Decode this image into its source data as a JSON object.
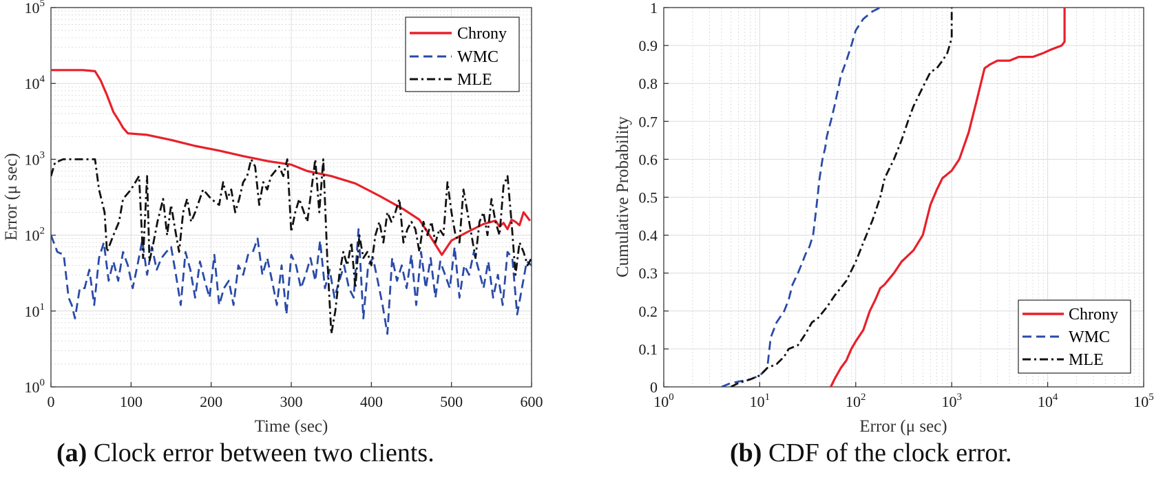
{
  "captions": {
    "a_label": "(a)",
    "a_text": "Clock error between two clients.",
    "b_label": "(b)",
    "b_text": "CDF of the clock error."
  },
  "colors": {
    "chrony": "#e8202a",
    "wmc": "#2a4aa8",
    "mle": "#111111"
  },
  "chart_data": [
    {
      "id": "a",
      "type": "line",
      "title": "",
      "xlabel": "Time (sec)",
      "ylabel": "Error (μ sec)",
      "xscale": "linear",
      "yscale": "log",
      "xlim": [
        0,
        600
      ],
      "ylim": [
        1,
        100000
      ],
      "xticks": [
        0,
        100,
        200,
        300,
        400,
        500,
        600
      ],
      "xtick_labels": [
        "0",
        "100",
        "200",
        "300",
        "400",
        "500",
        "600"
      ],
      "yticks": [
        1,
        10,
        100,
        1000,
        10000,
        100000
      ],
      "ytick_labels": [
        {
          "base": "10",
          "exp": "0"
        },
        {
          "base": "10",
          "exp": "1"
        },
        {
          "base": "10",
          "exp": "2"
        },
        {
          "base": "10",
          "exp": "3"
        },
        {
          "base": "10",
          "exp": "4"
        },
        {
          "base": "10",
          "exp": "5"
        }
      ],
      "grid": true,
      "legend_position": "top-right",
      "series": [
        {
          "name": "Chrony",
          "style": "solid",
          "x": [
            0,
            20,
            40,
            55,
            62,
            70,
            78,
            85,
            90,
            96,
            120,
            150,
            180,
            210,
            240,
            270,
            300,
            320,
            350,
            380,
            410,
            440,
            460,
            470,
            480,
            488,
            500,
            520,
            540,
            555,
            560,
            565,
            570,
            575,
            580,
            585,
            590,
            598
          ],
          "y": [
            15000,
            15000,
            15000,
            14500,
            11000,
            7000,
            4200,
            3200,
            2600,
            2200,
            2100,
            1800,
            1500,
            1300,
            1100,
            950,
            850,
            700,
            600,
            480,
            330,
            220,
            160,
            110,
            75,
            55,
            85,
            110,
            140,
            155,
            130,
            145,
            120,
            160,
            150,
            135,
            200,
            155
          ]
        },
        {
          "name": "WMC",
          "style": "dashed",
          "x": [
            0,
            8,
            16,
            22,
            26,
            30,
            36,
            42,
            48,
            54,
            60,
            66,
            72,
            78,
            84,
            90,
            96,
            102,
            108,
            114,
            120,
            126,
            132,
            138,
            144,
            150,
            156,
            162,
            168,
            174,
            180,
            186,
            192,
            198,
            204,
            210,
            216,
            222,
            228,
            234,
            240,
            246,
            252,
            258,
            264,
            270,
            276,
            282,
            288,
            294,
            300,
            306,
            312,
            318,
            324,
            330,
            336,
            342,
            348,
            354,
            360,
            366,
            372,
            378,
            384,
            390,
            396,
            402,
            408,
            414,
            420,
            426,
            432,
            438,
            444,
            450,
            456,
            462,
            468,
            474,
            480,
            486,
            492,
            498,
            504,
            510,
            516,
            522,
            528,
            534,
            540,
            546,
            552,
            558,
            564,
            570,
            576,
            582,
            588,
            594,
            600
          ],
          "y": [
            100,
            60,
            55,
            15,
            12,
            8,
            20,
            20,
            35,
            12,
            50,
            80,
            25,
            45,
            25,
            60,
            40,
            20,
            40,
            85,
            30,
            70,
            35,
            50,
            60,
            70,
            30,
            12,
            60,
            35,
            15,
            45,
            25,
            15,
            55,
            12,
            20,
            25,
            12,
            40,
            30,
            55,
            60,
            90,
            30,
            50,
            25,
            12,
            40,
            9,
            55,
            40,
            20,
            30,
            50,
            25,
            85,
            20,
            35,
            15,
            25,
            40,
            20,
            15,
            120,
            8,
            40,
            50,
            25,
            12,
            5,
            50,
            25,
            40,
            20,
            55,
            12,
            60,
            20,
            50,
            15,
            45,
            30,
            20,
            70,
            15,
            40,
            30,
            60,
            35,
            20,
            45,
            15,
            30,
            12,
            60,
            50,
            9,
            20,
            45,
            40
          ]
        },
        {
          "name": "MLE",
          "style": "dashdot",
          "x": [
            0,
            5,
            15,
            25,
            40,
            55,
            60,
            67,
            70,
            78,
            85,
            90,
            100,
            110,
            115,
            120,
            123,
            128,
            133,
            140,
            145,
            150,
            155,
            160,
            165,
            170,
            175,
            180,
            190,
            200,
            210,
            215,
            220,
            225,
            230,
            235,
            240,
            245,
            250,
            255,
            260,
            265,
            270,
            275,
            280,
            285,
            290,
            295,
            300,
            305,
            310,
            320,
            330,
            335,
            340,
            345,
            350,
            355,
            360,
            365,
            370,
            375,
            380,
            385,
            390,
            395,
            400,
            405,
            410,
            415,
            420,
            425,
            430,
            435,
            440,
            445,
            450,
            455,
            460,
            465,
            470,
            475,
            480,
            485,
            490,
            495,
            500,
            505,
            510,
            515,
            520,
            525,
            530,
            535,
            540,
            545,
            550,
            555,
            560,
            565,
            570,
            575,
            580,
            585,
            590,
            595,
            600
          ],
          "y": [
            600,
            900,
            1000,
            1000,
            1000,
            1000,
            400,
            200,
            60,
            100,
            150,
            300,
            400,
            600,
            50,
            600,
            45,
            80,
            150,
            300,
            100,
            250,
            120,
            60,
            200,
            300,
            150,
            200,
            400,
            300,
            250,
            500,
            300,
            400,
            200,
            300,
            500,
            600,
            1000,
            800,
            250,
            500,
            400,
            600,
            700,
            800,
            600,
            1000,
            110,
            200,
            300,
            150,
            1000,
            200,
            1000,
            50,
            5,
            10,
            30,
            60,
            40,
            80,
            20,
            100,
            50,
            60,
            40,
            100,
            150,
            80,
            200,
            150,
            200,
            300,
            80,
            120,
            150,
            120,
            60,
            150,
            100,
            150,
            80,
            120,
            100,
            500,
            200,
            100,
            80,
            400,
            200,
            100,
            50,
            150,
            200,
            100,
            300,
            150,
            100,
            450,
            600,
            150,
            30,
            80,
            60,
            40,
            50
          ]
        }
      ]
    },
    {
      "id": "b",
      "type": "line",
      "title": "",
      "xlabel": "Error (μ sec)",
      "ylabel": "Cumulative Probability",
      "xscale": "log",
      "yscale": "linear",
      "xlim": [
        1,
        100000
      ],
      "ylim": [
        0,
        1
      ],
      "xticks": [
        1,
        10,
        100,
        1000,
        10000,
        100000
      ],
      "xtick_labels": [
        {
          "base": "10",
          "exp": "0"
        },
        {
          "base": "10",
          "exp": "1"
        },
        {
          "base": "10",
          "exp": "2"
        },
        {
          "base": "10",
          "exp": "3"
        },
        {
          "base": "10",
          "exp": "4"
        },
        {
          "base": "10",
          "exp": "5"
        }
      ],
      "yticks": [
        0,
        0.1,
        0.2,
        0.3,
        0.4,
        0.5,
        0.6,
        0.7,
        0.8,
        0.9,
        1
      ],
      "ytick_labels": [
        "0",
        "0.1",
        "0.2",
        "0.3",
        "0.4",
        "0.5",
        "0.6",
        "0.7",
        "0.8",
        "0.9",
        "1"
      ],
      "grid": true,
      "legend_position": "bottom-right",
      "series": [
        {
          "name": "Chrony",
          "style": "solid",
          "x": [
            55,
            60,
            70,
            80,
            90,
            100,
            120,
            140,
            160,
            180,
            200,
            250,
            300,
            400,
            500,
            600,
            700,
            800,
            1000,
            1200,
            1500,
            1800,
            2200,
            2500,
            3000,
            4000,
            5000,
            7000,
            9000,
            11000,
            14000,
            15000,
            15000
          ],
          "y": [
            0,
            0.02,
            0.05,
            0.07,
            0.1,
            0.12,
            0.15,
            0.2,
            0.23,
            0.26,
            0.27,
            0.3,
            0.33,
            0.36,
            0.4,
            0.48,
            0.52,
            0.55,
            0.57,
            0.6,
            0.67,
            0.75,
            0.84,
            0.85,
            0.86,
            0.86,
            0.87,
            0.87,
            0.88,
            0.89,
            0.9,
            0.91,
            1.0
          ]
        },
        {
          "name": "WMC",
          "style": "dashed",
          "x": [
            4,
            5,
            8,
            10,
            11,
            12,
            13,
            15,
            18,
            20,
            22,
            25,
            28,
            30,
            33,
            36,
            38,
            40,
            42,
            45,
            48,
            50,
            55,
            60,
            65,
            70,
            80,
            90,
            100,
            120,
            150,
            180
          ],
          "y": [
            0,
            0.01,
            0.02,
            0.03,
            0.04,
            0.05,
            0.13,
            0.17,
            0.2,
            0.23,
            0.27,
            0.3,
            0.33,
            0.35,
            0.37,
            0.4,
            0.45,
            0.5,
            0.55,
            0.6,
            0.63,
            0.66,
            0.7,
            0.74,
            0.78,
            0.82,
            0.86,
            0.9,
            0.94,
            0.97,
            0.99,
            1.0
          ]
        },
        {
          "name": "MLE",
          "style": "dashdot",
          "x": [
            5,
            6,
            8,
            10,
            12,
            15,
            18,
            20,
            25,
            30,
            35,
            40,
            50,
            60,
            80,
            100,
            120,
            150,
            180,
            200,
            250,
            300,
            350,
            400,
            500,
            600,
            700,
            800,
            900,
            950,
            1000,
            1000
          ],
          "y": [
            0,
            0.01,
            0.02,
            0.03,
            0.05,
            0.06,
            0.08,
            0.1,
            0.11,
            0.14,
            0.17,
            0.18,
            0.21,
            0.24,
            0.28,
            0.33,
            0.38,
            0.44,
            0.5,
            0.55,
            0.6,
            0.65,
            0.7,
            0.74,
            0.79,
            0.83,
            0.84,
            0.86,
            0.88,
            0.9,
            0.92,
            1.0
          ]
        }
      ]
    }
  ]
}
